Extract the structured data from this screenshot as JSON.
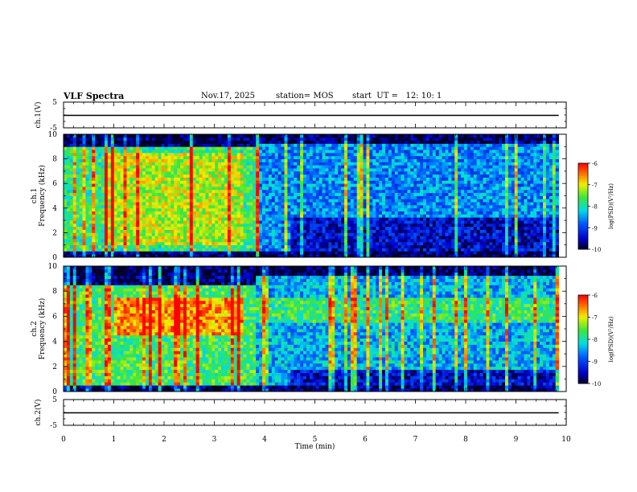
{
  "header": {
    "title": "VLF Spectra",
    "date": "Nov.17, 2025",
    "station": "station= MOS",
    "start": "start  UT =   12: 10: 1"
  },
  "chart_data": [
    {
      "type": "line",
      "panel": "ch1-waveform",
      "ylabel": "ch.1(V)",
      "ylim": [
        -5,
        5
      ],
      "yticks": [
        "5",
        "-5"
      ],
      "xlim": [
        0,
        10
      ],
      "series": [
        {
          "x": [
            0,
            9.85
          ],
          "y": [
            0,
            0
          ]
        }
      ]
    },
    {
      "type": "heatmap",
      "panel": "ch1-spectrogram",
      "ylabel": "ch.1\nFrequency (kHz)",
      "ylim": [
        0,
        10
      ],
      "yticks": [
        "0",
        "2",
        "4",
        "6",
        "8",
        "10"
      ],
      "xlim": [
        0,
        10
      ],
      "colorbar": {
        "label": "log(PSD)(V²/Hz)",
        "range": [
          -10,
          -6
        ],
        "ticks": [
          "-6",
          "-7",
          "-8",
          "-9",
          "-10"
        ]
      },
      "regions": [
        {
          "t": [
            0,
            3.9
          ],
          "f": [
            0.5,
            9
          ],
          "level": -7.8
        },
        {
          "t": [
            0.8,
            3.6
          ],
          "f": [
            1,
            8.5
          ],
          "level": -7.2
        },
        {
          "t": [
            3.9,
            9.85
          ],
          "f": [
            0.5,
            9.5
          ],
          "level": -8.6
        },
        {
          "t": [
            4.5,
            9.85
          ],
          "f": [
            0.5,
            3.2
          ],
          "level": -9.4
        }
      ]
    },
    {
      "type": "heatmap",
      "panel": "ch2-spectrogram",
      "ylabel": "ch.2\nFrequency (kHz)",
      "ylim": [
        0,
        10
      ],
      "yticks": [
        "0",
        "2",
        "4",
        "6",
        "8",
        "10"
      ],
      "xlim": [
        0,
        10
      ],
      "colorbar": {
        "label": "log(PSD)(V²/Hz)",
        "range": [
          -10,
          -6
        ],
        "ticks": [
          "-6",
          "-7",
          "-8",
          "-9",
          "-10"
        ]
      },
      "regions": [
        {
          "t": [
            0,
            3.8
          ],
          "f": [
            0.5,
            8.5
          ],
          "level": -7.7
        },
        {
          "t": [
            1,
            3.6
          ],
          "f": [
            4.5,
            7.5
          ],
          "level": -6.6
        },
        {
          "t": [
            3.8,
            9.85
          ],
          "f": [
            0.5,
            9.5
          ],
          "level": -8.4
        },
        {
          "t": [
            3.8,
            9.85
          ],
          "f": [
            5.5,
            7.5
          ],
          "level": -7.8
        },
        {
          "t": [
            4.5,
            9.85
          ],
          "f": [
            0.5,
            1.8
          ],
          "level": -9.4
        }
      ]
    },
    {
      "type": "line",
      "panel": "ch2-waveform",
      "ylabel": "ch.2(V)",
      "ylim": [
        -5,
        5
      ],
      "yticks": [
        "5",
        "-5"
      ],
      "xlim": [
        0,
        10
      ],
      "xlabel": "Time (min)",
      "xticks": [
        "0",
        "1",
        "2",
        "3",
        "4",
        "5",
        "6",
        "7",
        "8",
        "9",
        "10"
      ],
      "series": [
        {
          "x": [
            0,
            9.85
          ],
          "y": [
            0,
            0
          ]
        }
      ]
    }
  ]
}
